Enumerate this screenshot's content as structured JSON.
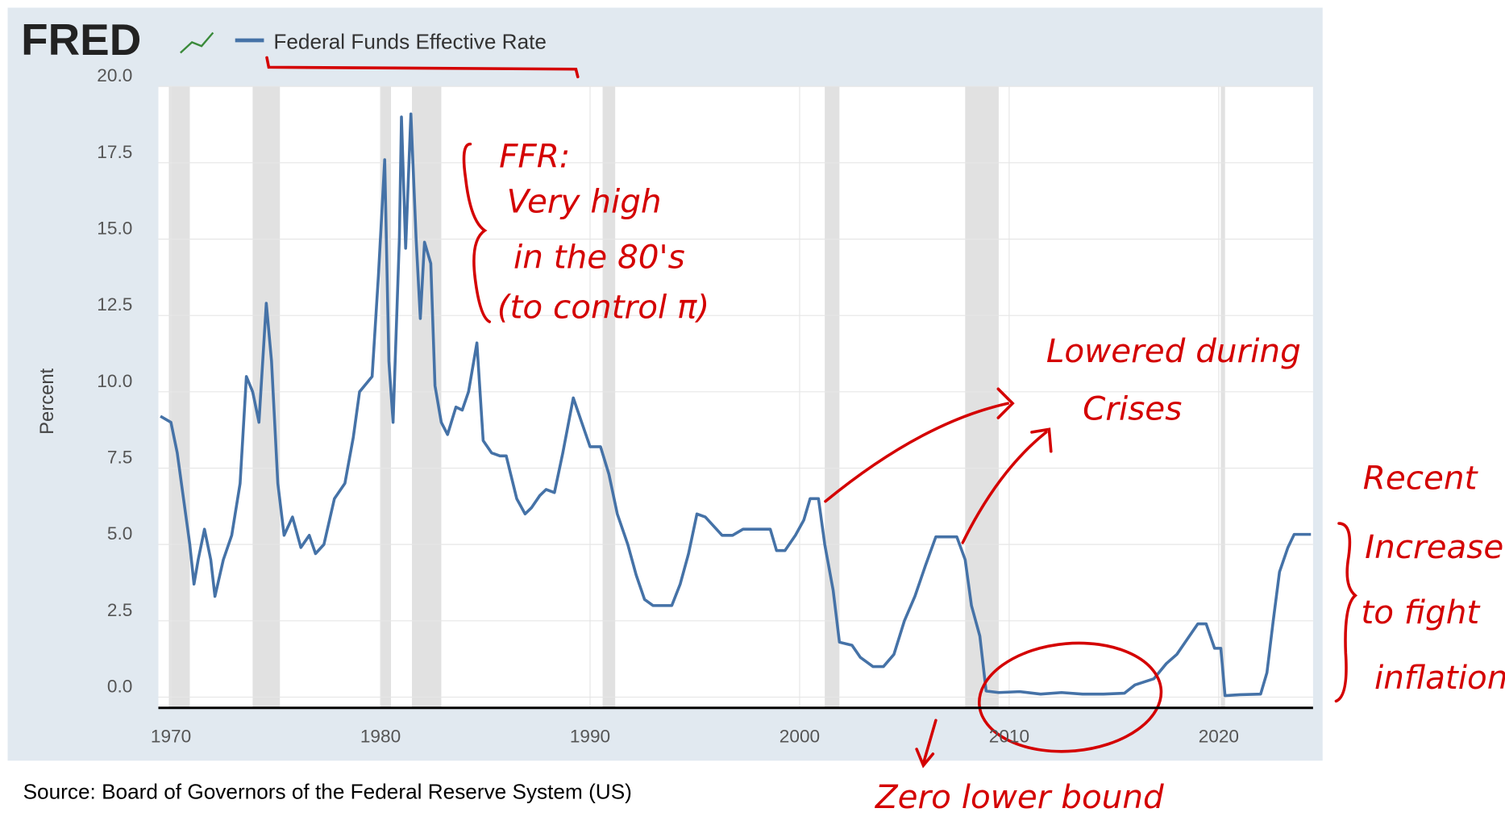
{
  "chart_data": {
    "type": "line",
    "logo": "FRED",
    "legend": "Federal Funds Effective Rate",
    "ylabel": "Percent",
    "source": "Source: Board of Governors of the Federal Reserve System (US)",
    "xlim": [
      1969.4,
      2024.5
    ],
    "ylim": [
      -0.35,
      20.0
    ],
    "xticks": [
      1970,
      1980,
      1990,
      2000,
      2010,
      2020
    ],
    "yticks": [
      {
        "value": 0,
        "label": "0.0"
      },
      2.5,
      {
        "value": 5,
        "label": "5.0"
      },
      7.5,
      {
        "value": 10,
        "label": "10.0"
      },
      12.5,
      {
        "value": 15,
        "label": "15.0"
      },
      17.5,
      {
        "value": 20,
        "label": "20.0"
      }
    ],
    "grid": true,
    "recession_color": "#e1e1e1",
    "recessions": [
      [
        1969.9,
        1970.9
      ],
      [
        1973.9,
        1975.2
      ],
      [
        1980.0,
        1980.5
      ],
      [
        1981.5,
        1982.9
      ],
      [
        1990.6,
        1991.2
      ],
      [
        2001.2,
        2001.9
      ],
      [
        2007.9,
        2009.5
      ],
      [
        2020.1,
        2020.3
      ]
    ],
    "x": [
      1969.5,
      1970.0,
      1970.3,
      1970.6,
      1970.9,
      1971.1,
      1971.3,
      1971.6,
      1971.9,
      1972.1,
      1972.5,
      1972.9,
      1973.3,
      1973.6,
      1973.9,
      1974.2,
      1974.55,
      1974.8,
      1975.1,
      1975.4,
      1975.8,
      1976.2,
      1976.6,
      1976.9,
      1977.3,
      1977.8,
      1978.3,
      1978.7,
      1979.0,
      1979.6,
      1979.9,
      1980.2,
      1980.4,
      1980.6,
      1980.9,
      1981.0,
      1981.2,
      1981.45,
      1981.7,
      1981.9,
      1982.1,
      1982.4,
      1982.6,
      1982.9,
      1983.2,
      1983.6,
      1983.9,
      1984.2,
      1984.6,
      1984.9,
      1985.3,
      1985.7,
      1986.0,
      1986.5,
      1986.9,
      1987.2,
      1987.6,
      1987.9,
      1988.3,
      1988.7,
      1989.2,
      1989.6,
      1990.0,
      1990.5,
      1990.9,
      1991.3,
      1991.8,
      1992.2,
      1992.6,
      1993.0,
      1993.5,
      1993.9,
      1994.3,
      1994.7,
      1995.1,
      1995.5,
      1995.9,
      1996.3,
      1996.8,
      1997.3,
      1998.0,
      1998.6,
      1998.9,
      1999.3,
      1999.8,
      2000.2,
      2000.5,
      2000.9,
      2001.2,
      2001.6,
      2001.9,
      2002.5,
      2002.9,
      2003.5,
      2004.0,
      2004.5,
      2005.0,
      2005.5,
      2006.0,
      2006.5,
      2007.5,
      2007.9,
      2008.2,
      2008.6,
      2008.9,
      2009.5,
      2010.5,
      2011.5,
      2012.5,
      2013.5,
      2014.5,
      2015.5,
      2016.0,
      2016.9,
      2017.5,
      2018.0,
      2018.5,
      2019.0,
      2019.4,
      2019.8,
      2020.1,
      2020.3,
      2021.0,
      2022.0,
      2022.3,
      2022.6,
      2022.9,
      2023.3,
      2023.6,
      2024.4
    ],
    "series": [
      {
        "name": "Federal Funds Effective Rate",
        "color": "#4572a7",
        "values": [
          9.2,
          9.0,
          8.0,
          6.5,
          5.0,
          3.7,
          4.5,
          5.5,
          4.5,
          3.3,
          4.5,
          5.3,
          7.0,
          10.5,
          10.0,
          9.0,
          12.9,
          11.0,
          7.0,
          5.3,
          5.9,
          4.9,
          5.3,
          4.7,
          5.0,
          6.5,
          7.0,
          8.5,
          10.0,
          10.5,
          13.8,
          17.6,
          11.0,
          9.0,
          15.0,
          19.0,
          14.7,
          19.1,
          15.0,
          12.4,
          14.9,
          14.2,
          10.2,
          9.0,
          8.6,
          9.5,
          9.4,
          10.0,
          11.6,
          8.4,
          8.0,
          7.9,
          7.9,
          6.5,
          6.0,
          6.2,
          6.6,
          6.8,
          6.7,
          8.0,
          9.8,
          9.0,
          8.2,
          8.2,
          7.3,
          6.0,
          5.0,
          4.0,
          3.2,
          3.0,
          3.0,
          3.0,
          3.7,
          4.7,
          6.0,
          5.9,
          5.6,
          5.3,
          5.3,
          5.5,
          5.5,
          5.5,
          4.8,
          4.8,
          5.3,
          5.8,
          6.5,
          6.5,
          5.0,
          3.5,
          1.8,
          1.7,
          1.3,
          1.0,
          1.0,
          1.4,
          2.5,
          3.3,
          4.3,
          5.25,
          5.25,
          4.5,
          3.0,
          2.0,
          0.2,
          0.15,
          0.18,
          0.1,
          0.15,
          0.1,
          0.1,
          0.13,
          0.4,
          0.6,
          1.1,
          1.4,
          1.9,
          2.4,
          2.4,
          1.6,
          1.6,
          0.05,
          0.08,
          0.1,
          0.8,
          2.5,
          4.1,
          4.9,
          5.33,
          5.33
        ]
      }
    ],
    "annotations": [
      "FFR:",
      "Very high",
      "in the 80's",
      "(to control π)",
      "Lowered during",
      "Crises",
      "Recent",
      "Increase",
      "to fight",
      "inflation",
      "Zero lower bound"
    ]
  }
}
